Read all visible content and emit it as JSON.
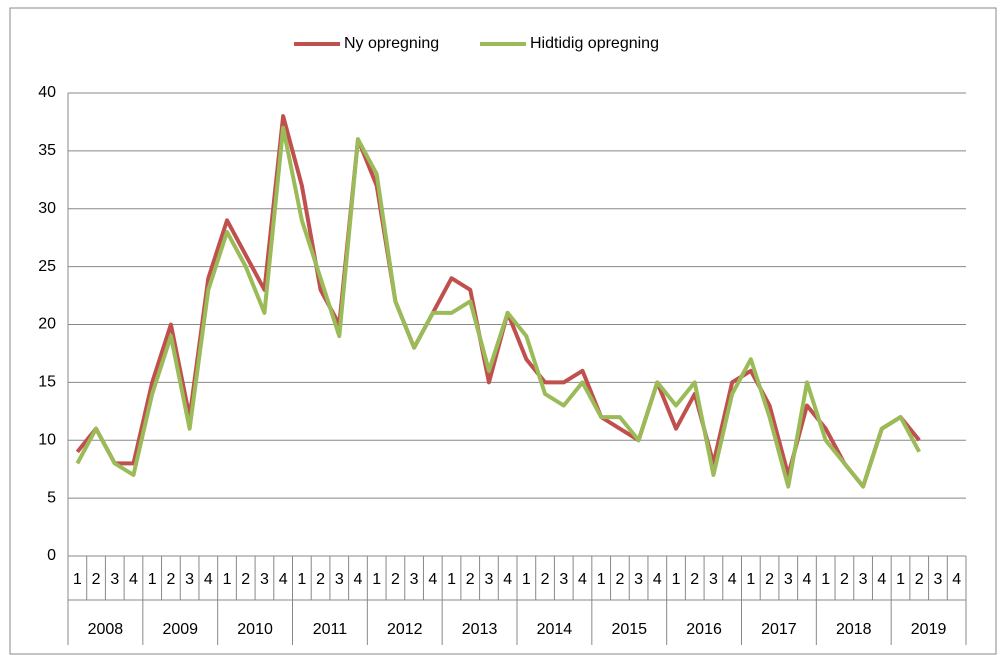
{
  "chart_data": {
    "type": "line",
    "categories": [
      "1",
      "2",
      "3",
      "4",
      "1",
      "2",
      "3",
      "4",
      "1",
      "2",
      "3",
      "4",
      "1",
      "2",
      "3",
      "4",
      "1",
      "2",
      "3",
      "4",
      "1",
      "2",
      "3",
      "4",
      "1",
      "2",
      "3",
      "4",
      "1",
      "2",
      "3",
      "4",
      "1",
      "2",
      "3",
      "4",
      "1",
      "2",
      "3",
      "4",
      "1",
      "2",
      "3",
      "4",
      "1",
      "2",
      "3",
      "4"
    ],
    "groups": [
      "2008",
      "2009",
      "2010",
      "2011",
      "2012",
      "2013",
      "2014",
      "2015",
      "2016",
      "2017",
      "2018",
      "2019"
    ],
    "series": [
      {
        "name": "Ny opregning",
        "color": "#c0504d",
        "values": [
          9,
          11,
          8,
          8,
          15,
          20,
          12,
          24,
          29,
          26,
          23,
          38,
          32,
          23,
          20,
          36,
          32,
          22,
          18,
          21,
          24,
          23,
          15,
          21,
          17,
          15,
          15,
          16,
          12,
          11,
          10,
          15,
          11,
          14,
          8,
          15,
          16,
          13,
          7,
          13,
          11,
          8,
          6,
          11,
          12,
          10,
          null,
          null
        ]
      },
      {
        "name": "Hidtidig opregning",
        "color": "#9bbb59",
        "values": [
          8,
          11,
          8,
          7,
          14,
          19,
          11,
          23,
          28,
          25,
          21,
          37,
          29,
          24,
          19,
          36,
          33,
          22,
          18,
          21,
          21,
          22,
          16,
          21,
          19,
          14,
          13,
          15,
          12,
          12,
          10,
          15,
          13,
          15,
          7,
          14,
          17,
          12,
          6,
          15,
          10,
          8,
          6,
          11,
          12,
          9,
          null,
          null
        ]
      }
    ],
    "ylim": [
      0,
      40
    ],
    "yticks": [
      0,
      5,
      10,
      15,
      20,
      25,
      30,
      35,
      40
    ],
    "grid": true,
    "legend": "top"
  }
}
